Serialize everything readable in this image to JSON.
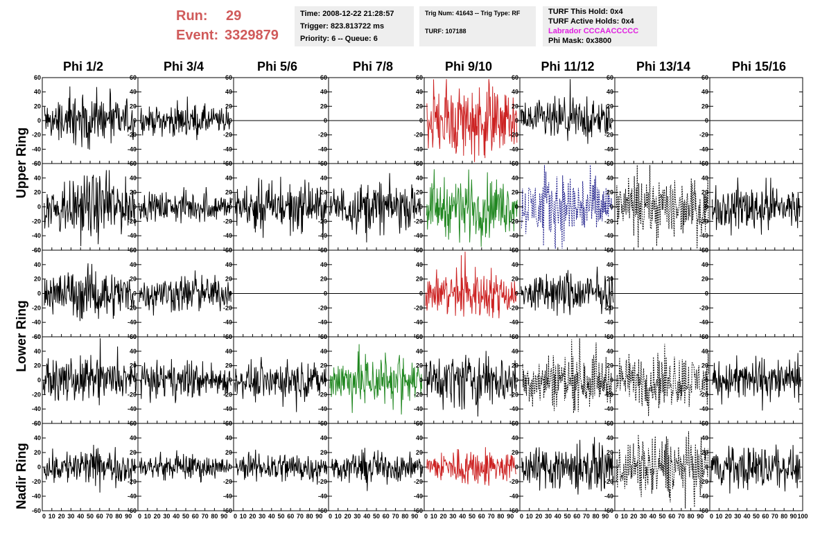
{
  "header": {
    "run_label": "Run:",
    "run_value": "29",
    "event_label": "Event:",
    "event_value": "3329879",
    "time_line": "Time: 2008-12-22 21:28:57",
    "trigger_line": "Trigger: 823.813722 ms",
    "priority_line": "Priority: 6 -- Queue: 6",
    "trig_line": "Trig Num: 41643 -- Trig Type: RF",
    "turf_line": "TURF: 107188",
    "turf_hold_line": "TURF This Hold: 0x4",
    "turf_active_line": "TURF Active Holds: 0x4",
    "labrador_line": "Labrador CCCAACCCCC",
    "phimask_line": "Phi Mask: 0x3800",
    "labrador_color": "#e020e0",
    "run_color": "#d05a5a"
  },
  "chart_data": {
    "type": "line",
    "columns": [
      "Phi 1/2",
      "Phi 3/4",
      "Phi 5/6",
      "Phi 7/8",
      "Phi 9/10",
      "Phi 11/12",
      "Phi 13/14",
      "Phi 15/16"
    ],
    "row_labels": [
      "Upper Ring",
      "Lower Ring",
      "Nadir Ring"
    ],
    "ylim": [
      -60,
      60
    ],
    "xlim": [
      0,
      100
    ],
    "y_ticks": [
      -60,
      -40,
      -20,
      0,
      20,
      40,
      60
    ],
    "x_ticks": [
      0,
      10,
      20,
      30,
      40,
      50,
      60,
      70,
      80,
      90,
      100
    ],
    "x_tick_labels": [
      "0",
      "10",
      "20",
      "30",
      "40",
      "50",
      "60",
      "70",
      "80",
      "90",
      "100"
    ],
    "panel_rows": [
      [
        {
          "style": "solid",
          "color": "#000000",
          "amp": 16
        },
        {
          "style": "solid",
          "color": "#000000",
          "amp": 10
        },
        {
          "style": "flat",
          "color": "#000000",
          "amp": 0
        },
        {
          "style": "flat",
          "color": "#000000",
          "amp": 0
        },
        {
          "style": "solid",
          "color": "#cc2222",
          "amp": 24
        },
        {
          "style": "solid",
          "color": "#000000",
          "amp": 14
        },
        {
          "style": "flat",
          "color": "#000000",
          "amp": 0
        },
        {
          "style": "flat",
          "color": "#000000",
          "amp": 0
        }
      ],
      [
        {
          "style": "solid",
          "color": "#000000",
          "amp": 20
        },
        {
          "style": "solid",
          "color": "#000000",
          "amp": 10
        },
        {
          "style": "solid",
          "color": "#000000",
          "amp": 16
        },
        {
          "style": "solid",
          "color": "#000000",
          "amp": 16
        },
        {
          "style": "solid",
          "color": "#228822",
          "amp": 20
        },
        {
          "style": "dashed",
          "color": "#1a1a88",
          "amp": 22
        },
        {
          "style": "dashed",
          "color": "#000000",
          "amp": 20
        },
        {
          "style": "solid",
          "color": "#000000",
          "amp": 16
        }
      ],
      [
        {
          "style": "solid",
          "color": "#000000",
          "amp": 16
        },
        {
          "style": "solid",
          "color": "#000000",
          "amp": 12
        },
        {
          "style": "flat",
          "color": "#000000",
          "amp": 0
        },
        {
          "style": "flat",
          "color": "#000000",
          "amp": 0
        },
        {
          "style": "solid",
          "color": "#cc2222",
          "amp": 16
        },
        {
          "style": "solid",
          "color": "#000000",
          "amp": 14
        },
        {
          "style": "flat",
          "color": "#000000",
          "amp": 0
        },
        {
          "style": "flat",
          "color": "#000000",
          "amp": 0
        }
      ],
      [
        {
          "style": "solid",
          "color": "#000000",
          "amp": 14
        },
        {
          "style": "solid",
          "color": "#000000",
          "amp": 12
        },
        {
          "style": "solid",
          "color": "#000000",
          "amp": 12
        },
        {
          "style": "solid",
          "color": "#228822",
          "amp": 18
        },
        {
          "style": "solid",
          "color": "#000000",
          "amp": 18
        },
        {
          "style": "dashed",
          "color": "#000000",
          "amp": 18
        },
        {
          "style": "dashed",
          "color": "#000000",
          "amp": 18
        },
        {
          "style": "solid",
          "color": "#000000",
          "amp": 14
        }
      ],
      [
        {
          "style": "solid",
          "color": "#000000",
          "amp": 12
        },
        {
          "style": "solid",
          "color": "#000000",
          "amp": 8
        },
        {
          "style": "solid",
          "color": "#000000",
          "amp": 10
        },
        {
          "style": "solid",
          "color": "#000000",
          "amp": 10
        },
        {
          "style": "solid",
          "color": "#cc2222",
          "amp": 12
        },
        {
          "style": "solid",
          "color": "#000000",
          "amp": 16
        },
        {
          "style": "dashed",
          "color": "#000000",
          "amp": 20
        },
        {
          "style": "solid",
          "color": "#000000",
          "amp": 14
        }
      ]
    ]
  }
}
